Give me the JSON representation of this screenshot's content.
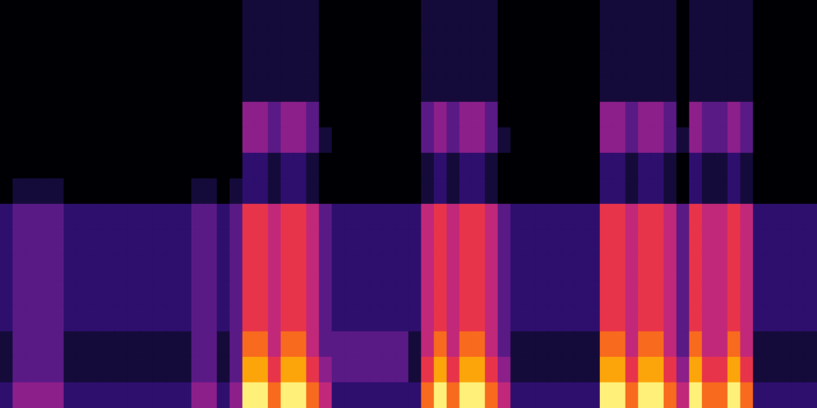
{
  "chart_data": {
    "type": "heatmap",
    "tick_labels": false,
    "grid": false,
    "zlim": [
      0,
      9
    ],
    "z": [
      [
        0,
        0,
        0,
        0,
        0,
        0,
        0,
        0,
        0,
        0,
        0,
        0,
        0,
        0,
        0,
        0,
        0,
        0,
        0,
        1,
        1,
        1,
        1,
        1,
        1,
        0,
        0,
        0,
        0,
        0,
        0,
        0,
        0,
        1,
        1,
        1,
        1,
        1,
        1,
        0,
        0,
        0,
        0,
        0,
        0,
        0,
        0,
        1,
        1,
        1,
        1,
        1,
        1,
        0,
        1,
        1,
        1,
        1,
        1,
        0,
        0,
        0,
        0,
        0
      ],
      [
        0,
        0,
        0,
        0,
        0,
        0,
        0,
        0,
        0,
        0,
        0,
        0,
        0,
        0,
        0,
        0,
        0,
        0,
        0,
        1,
        1,
        1,
        1,
        1,
        1,
        0,
        0,
        0,
        0,
        0,
        0,
        0,
        0,
        1,
        1,
        1,
        1,
        1,
        1,
        0,
        0,
        0,
        0,
        0,
        0,
        0,
        0,
        1,
        1,
        1,
        1,
        1,
        1,
        0,
        1,
        1,
        1,
        1,
        1,
        0,
        0,
        0,
        0,
        0
      ],
      [
        0,
        0,
        0,
        0,
        0,
        0,
        0,
        0,
        0,
        0,
        0,
        0,
        0,
        0,
        0,
        0,
        0,
        0,
        0,
        1,
        1,
        1,
        1,
        1,
        1,
        0,
        0,
        0,
        0,
        0,
        0,
        0,
        0,
        1,
        1,
        1,
        1,
        1,
        1,
        0,
        0,
        0,
        0,
        0,
        0,
        0,
        0,
        1,
        1,
        1,
        1,
        1,
        1,
        0,
        1,
        1,
        1,
        1,
        1,
        0,
        0,
        0,
        0,
        0
      ],
      [
        0,
        0,
        0,
        0,
        0,
        0,
        0,
        0,
        0,
        0,
        0,
        0,
        0,
        0,
        0,
        0,
        0,
        0,
        0,
        1,
        1,
        1,
        1,
        1,
        1,
        0,
        0,
        0,
        0,
        0,
        0,
        0,
        0,
        1,
        1,
        1,
        1,
        1,
        1,
        0,
        0,
        0,
        0,
        0,
        0,
        0,
        0,
        1,
        1,
        1,
        1,
        1,
        1,
        0,
        1,
        1,
        1,
        1,
        1,
        0,
        0,
        0,
        0,
        0
      ],
      [
        0,
        0,
        0,
        0,
        0,
        0,
        0,
        0,
        0,
        0,
        0,
        0,
        0,
        0,
        0,
        0,
        0,
        0,
        0,
        4,
        4,
        3,
        4,
        4,
        3,
        0,
        0,
        0,
        0,
        0,
        0,
        0,
        0,
        3,
        4,
        3,
        4,
        4,
        3,
        0,
        0,
        0,
        0,
        0,
        0,
        0,
        0,
        4,
        4,
        3,
        4,
        4,
        3,
        0,
        4,
        3,
        3,
        4,
        3,
        0,
        0,
        0,
        0,
        0
      ],
      [
        0,
        0,
        0,
        0,
        0,
        0,
        0,
        0,
        0,
        0,
        0,
        0,
        0,
        0,
        0,
        0,
        0,
        0,
        0,
        4,
        4,
        3,
        4,
        4,
        3,
        1,
        0,
        0,
        0,
        0,
        0,
        0,
        0,
        3,
        4,
        3,
        4,
        4,
        3,
        1,
        0,
        0,
        0,
        0,
        0,
        0,
        0,
        4,
        4,
        3,
        4,
        4,
        3,
        1,
        4,
        3,
        3,
        4,
        3,
        0,
        0,
        0,
        0,
        0
      ],
      [
        0,
        0,
        0,
        0,
        0,
        0,
        0,
        0,
        0,
        0,
        0,
        0,
        0,
        0,
        0,
        0,
        0,
        0,
        0,
        2,
        2,
        1,
        2,
        2,
        1,
        0,
        0,
        0,
        0,
        0,
        0,
        0,
        0,
        1,
        2,
        1,
        2,
        2,
        1,
        0,
        0,
        0,
        0,
        0,
        0,
        0,
        0,
        2,
        2,
        1,
        2,
        2,
        1,
        0,
        2,
        1,
        1,
        2,
        1,
        0,
        0,
        0,
        0,
        0
      ],
      [
        0,
        1,
        1,
        1,
        1,
        0,
        0,
        0,
        0,
        0,
        0,
        0,
        0,
        0,
        0,
        1,
        1,
        0,
        1,
        2,
        2,
        1,
        2,
        2,
        1,
        0,
        0,
        0,
        0,
        0,
        0,
        0,
        0,
        1,
        2,
        1,
        2,
        2,
        1,
        0,
        0,
        0,
        0,
        0,
        0,
        0,
        0,
        2,
        2,
        1,
        2,
        2,
        1,
        0,
        2,
        1,
        1,
        2,
        1,
        0,
        0,
        0,
        0,
        0
      ],
      [
        2,
        3,
        3,
        3,
        3,
        2,
        2,
        2,
        2,
        2,
        2,
        2,
        2,
        2,
        2,
        3,
        3,
        2,
        3,
        6,
        6,
        5,
        6,
        6,
        5,
        3,
        2,
        2,
        2,
        2,
        2,
        2,
        2,
        5,
        6,
        5,
        6,
        6,
        5,
        3,
        2,
        2,
        2,
        2,
        2,
        2,
        2,
        6,
        6,
        5,
        6,
        6,
        5,
        3,
        6,
        5,
        5,
        6,
        5,
        2,
        2,
        2,
        2,
        2
      ],
      [
        2,
        3,
        3,
        3,
        3,
        2,
        2,
        2,
        2,
        2,
        2,
        2,
        2,
        2,
        2,
        3,
        3,
        2,
        3,
        6,
        6,
        5,
        6,
        6,
        5,
        3,
        2,
        2,
        2,
        2,
        2,
        2,
        2,
        5,
        6,
        5,
        6,
        6,
        5,
        3,
        2,
        2,
        2,
        2,
        2,
        2,
        2,
        6,
        6,
        5,
        6,
        6,
        5,
        3,
        6,
        5,
        5,
        6,
        5,
        2,
        2,
        2,
        2,
        2
      ],
      [
        2,
        3,
        3,
        3,
        3,
        2,
        2,
        2,
        2,
        2,
        2,
        2,
        2,
        2,
        2,
        3,
        3,
        2,
        3,
        6,
        6,
        5,
        6,
        6,
        5,
        3,
        2,
        2,
        2,
        2,
        2,
        2,
        2,
        5,
        6,
        5,
        6,
        6,
        5,
        3,
        2,
        2,
        2,
        2,
        2,
        2,
        2,
        6,
        6,
        5,
        6,
        6,
        5,
        3,
        6,
        5,
        5,
        6,
        5,
        2,
        2,
        2,
        2,
        2
      ],
      [
        2,
        3,
        3,
        3,
        3,
        2,
        2,
        2,
        2,
        2,
        2,
        2,
        2,
        2,
        2,
        3,
        3,
        2,
        3,
        6,
        6,
        5,
        6,
        6,
        5,
        3,
        2,
        2,
        2,
        2,
        2,
        2,
        2,
        5,
        6,
        5,
        6,
        6,
        5,
        3,
        2,
        2,
        2,
        2,
        2,
        2,
        2,
        6,
        6,
        5,
        6,
        6,
        5,
        3,
        6,
        5,
        5,
        6,
        5,
        2,
        2,
        2,
        2,
        2
      ],
      [
        2,
        3,
        3,
        3,
        3,
        2,
        2,
        2,
        2,
        2,
        2,
        2,
        2,
        2,
        2,
        3,
        3,
        2,
        3,
        6,
        6,
        5,
        6,
        6,
        5,
        3,
        2,
        2,
        2,
        2,
        2,
        2,
        2,
        5,
        6,
        5,
        6,
        6,
        5,
        3,
        2,
        2,
        2,
        2,
        2,
        2,
        2,
        6,
        6,
        5,
        6,
        6,
        5,
        3,
        6,
        5,
        5,
        6,
        5,
        2,
        2,
        2,
        2,
        2
      ],
      [
        1,
        3,
        3,
        3,
        3,
        1,
        1,
        1,
        1,
        1,
        1,
        1,
        1,
        1,
        1,
        3,
        3,
        1,
        3,
        7,
        7,
        5,
        7,
        7,
        5,
        3,
        3,
        3,
        3,
        3,
        3,
        3,
        1,
        5,
        7,
        5,
        7,
        7,
        5,
        3,
        1,
        1,
        1,
        1,
        1,
        1,
        1,
        7,
        7,
        5,
        7,
        7,
        5,
        3,
        7,
        5,
        5,
        7,
        5,
        1,
        1,
        1,
        1,
        1
      ],
      [
        1,
        3,
        3,
        3,
        3,
        1,
        1,
        1,
        1,
        1,
        1,
        1,
        1,
        1,
        1,
        3,
        3,
        1,
        3,
        8,
        8,
        6,
        8,
        8,
        6,
        4,
        3,
        3,
        3,
        3,
        3,
        3,
        1,
        6,
        8,
        6,
        8,
        8,
        6,
        4,
        1,
        1,
        1,
        1,
        1,
        1,
        1,
        8,
        8,
        6,
        8,
        8,
        6,
        4,
        8,
        6,
        6,
        8,
        6,
        1,
        1,
        1,
        1,
        1
      ],
      [
        2,
        4,
        4,
        4,
        4,
        2,
        2,
        2,
        2,
        2,
        2,
        2,
        2,
        2,
        2,
        4,
        4,
        2,
        4,
        9,
        9,
        7,
        9,
        9,
        7,
        5,
        2,
        2,
        2,
        2,
        2,
        2,
        2,
        7,
        9,
        7,
        9,
        9,
        7,
        5,
        2,
        2,
        2,
        2,
        2,
        2,
        2,
        9,
        9,
        7,
        9,
        9,
        7,
        5,
        9,
        7,
        7,
        9,
        7,
        2,
        2,
        2,
        2,
        2
      ]
    ]
  }
}
